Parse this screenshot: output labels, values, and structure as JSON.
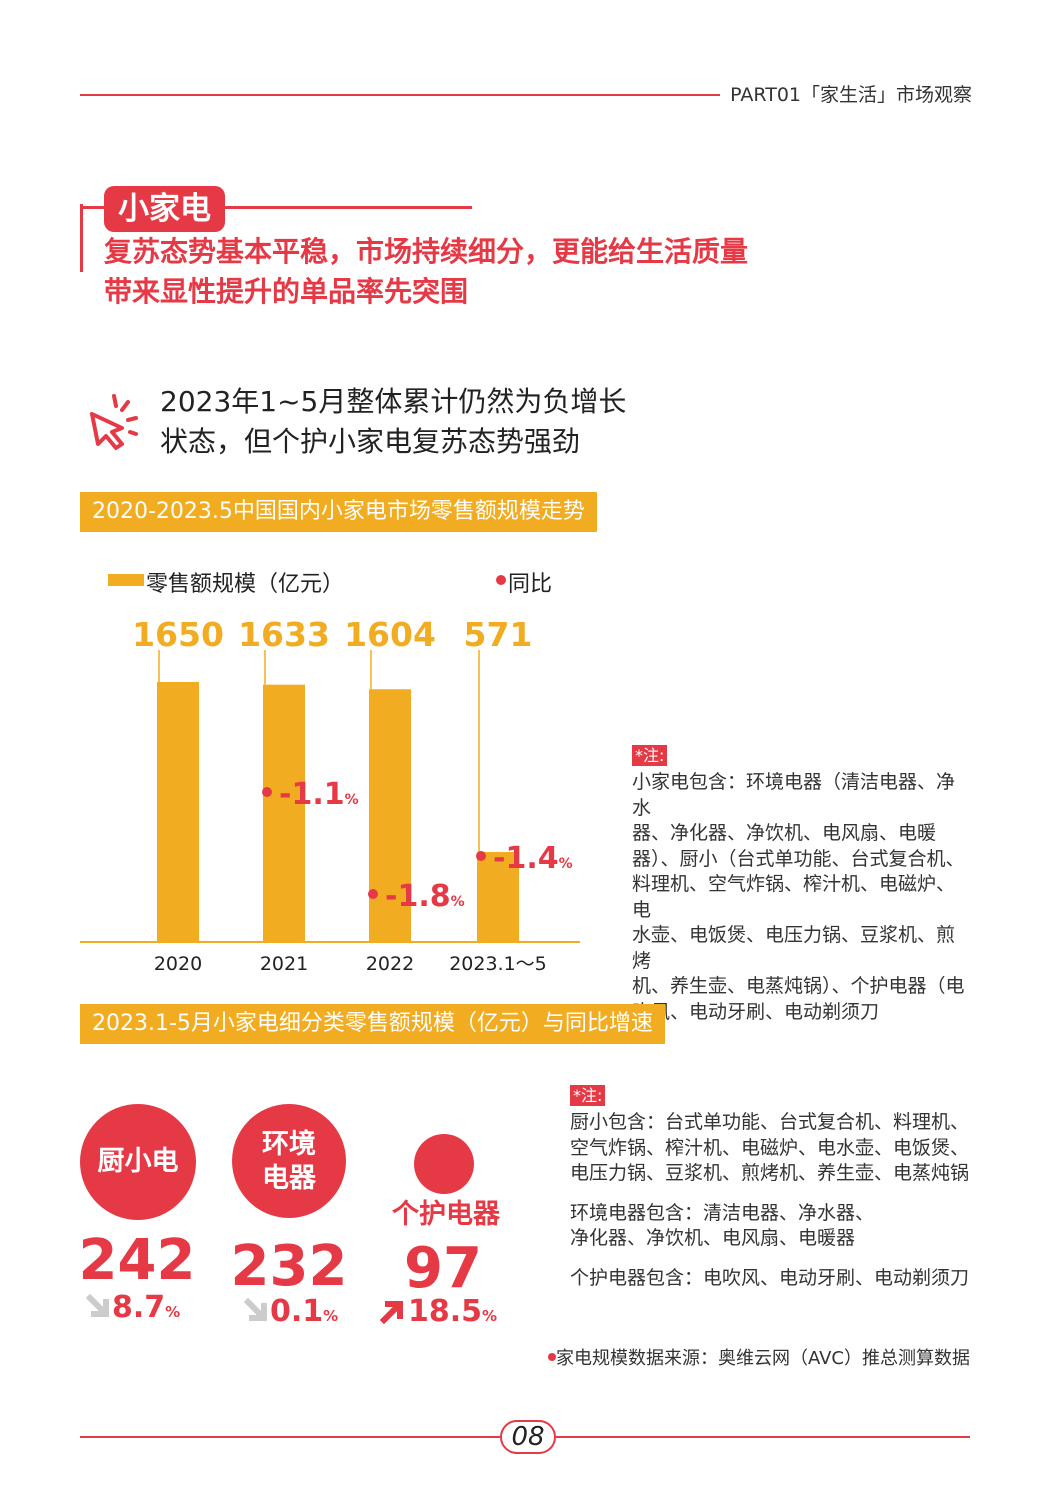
{
  "header": {
    "part_label": "PART01「家生活」市场观察"
  },
  "section": {
    "badge": "小家电",
    "subtitle_line1": "复苏态势基本平稳，市场持续细分，更能给生活质量",
    "subtitle_line2": "带来显性提升的单品率先突围"
  },
  "lead": {
    "line1": "2023年1~5月整体累计仍然为负增长",
    "line2": "状态，但个护小家电复苏态势强劲",
    "icon": "cursor-click-icon"
  },
  "chart_banner": "2020-2023.5中国国内小家电市场零售额规模走势",
  "chart_data": {
    "type": "bar",
    "title": "2020-2023.5中国国内小家电市场零售额规模走势",
    "legend": {
      "bar": "零售额规模（亿元）",
      "dot": "同比"
    },
    "categories": [
      "2020",
      "2021",
      "2022",
      "2023.1～5"
    ],
    "values": [
      1650,
      1633,
      1604,
      571
    ],
    "value_labels": [
      "1650",
      "1633",
      "1604",
      "571"
    ],
    "yoy": [
      null,
      "-1.1",
      "-1.8",
      "-1.4"
    ],
    "yoy_unit": "%",
    "colors": {
      "bar": "#f2ac21",
      "dot": "#e63946"
    }
  },
  "note1": {
    "tag": "*注:",
    "lines": [
      "小家电包含：环境电器（清洁电器、净水",
      "器、净化器、净饮机、电风扇、电暖",
      "器）、厨小（台式单功能、台式复合机、",
      "料理机、空气炸锅、榨汁机、电磁炉、电",
      "水壶、电饭煲、电压力锅、豆浆机、煎烤",
      "机、养生壶、电蒸炖锅）、个护电器（电",
      "吹风、电动牙刷、电动剃须刀"
    ]
  },
  "category_banner": "2023.1-5月小家电细分类零售额规模（亿元）与同比增速",
  "categories": [
    {
      "label": "厨小电",
      "value": "242",
      "change": "8.7",
      "unit": "%",
      "direction": "down",
      "icon": "arrow-down-right-icon"
    },
    {
      "label": "环境电器",
      "label_line1": "环境",
      "label_line2": "电器",
      "value": "232",
      "change": "0.1",
      "unit": "%",
      "direction": "down",
      "icon": "arrow-down-right-icon"
    },
    {
      "label": "个护电器",
      "value": "97",
      "change": "18.5",
      "unit": "%",
      "direction": "up",
      "icon": "arrow-up-right-icon"
    }
  ],
  "note2": {
    "tag": "*注:",
    "kitchen_lines": [
      "厨小包含：台式单功能、台式复合机、料理机、",
      "空气炸锅、榨汁机、电磁炉、电水壶、电饭煲、",
      "电压力锅、豆浆机、煎烤机、养生壶、电蒸炖锅"
    ],
    "env_lines": [
      "环境电器包含：清洁电器、净水器、",
      "净化器、净饮机、电风扇、电暖器"
    ],
    "care_line": "个护电器包含：电吹风、电动牙刷、电动剃须刀"
  },
  "source": "家电规模数据来源：奥维云网（AVC）推总测算数据",
  "page_number": "08",
  "colors": {
    "accent": "#e63946",
    "bar": "#f2ac21"
  }
}
